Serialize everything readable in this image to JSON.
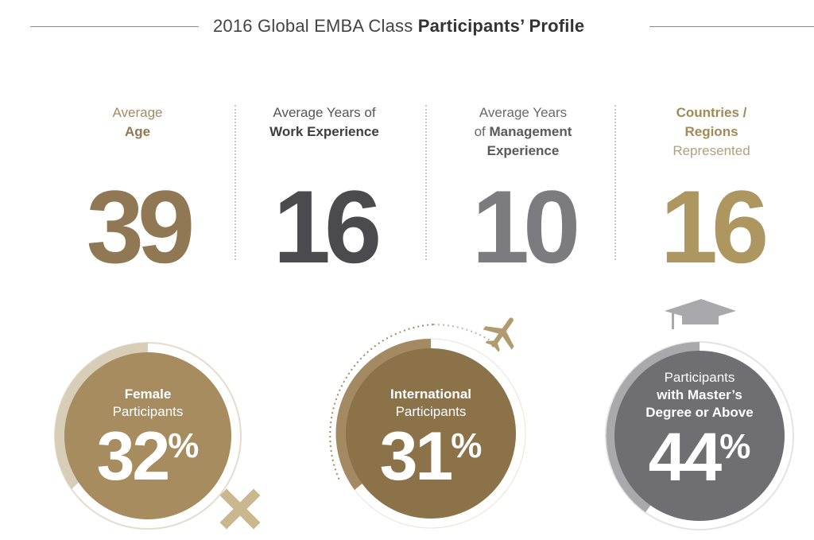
{
  "title": {
    "regular": "2016 Global EMBA Class",
    "bold": "Participants’ Profile"
  },
  "colors": {
    "gold_dark": "#8f7853",
    "charcoal": "#4b4a4c",
    "grey": "#7c7b7d",
    "gold_light": "#ad9660",
    "female_fill": "#a68c5f",
    "female_ring": "#d8cdb6",
    "intl_fill": "#8b7249",
    "intl_ring": "#a38a62",
    "masters_fill": "#6f6e70",
    "masters_ring": "#a9a8aa"
  },
  "stats": [
    {
      "line1": "Average",
      "line2": "Age",
      "line3": "",
      "value": "39"
    },
    {
      "line1": "Average Years of",
      "line2": "Work Experience",
      "line3": "",
      "value": "16"
    },
    {
      "line1": "Average Years",
      "line2a": "of",
      "line2b": "Management",
      "line3": "Experience",
      "value": "10"
    },
    {
      "line1": "Countries /",
      "line2": "Regions",
      "line3": "Represented",
      "value": "16"
    }
  ],
  "circles": [
    {
      "line1": "Female",
      "line2": "Participants",
      "value": "32",
      "unit": "%",
      "icon": "female-symbol-icon",
      "percent": 32
    },
    {
      "line1": "International",
      "line2": "Participants",
      "value": "31",
      "unit": "%",
      "icon": "airplane-icon",
      "percent": 31
    },
    {
      "line1": "Participants",
      "line2": "with Master’s",
      "line3": "Degree or Above",
      "value": "44",
      "unit": "%",
      "icon": "graduation-cap-icon",
      "percent": 44
    }
  ]
}
